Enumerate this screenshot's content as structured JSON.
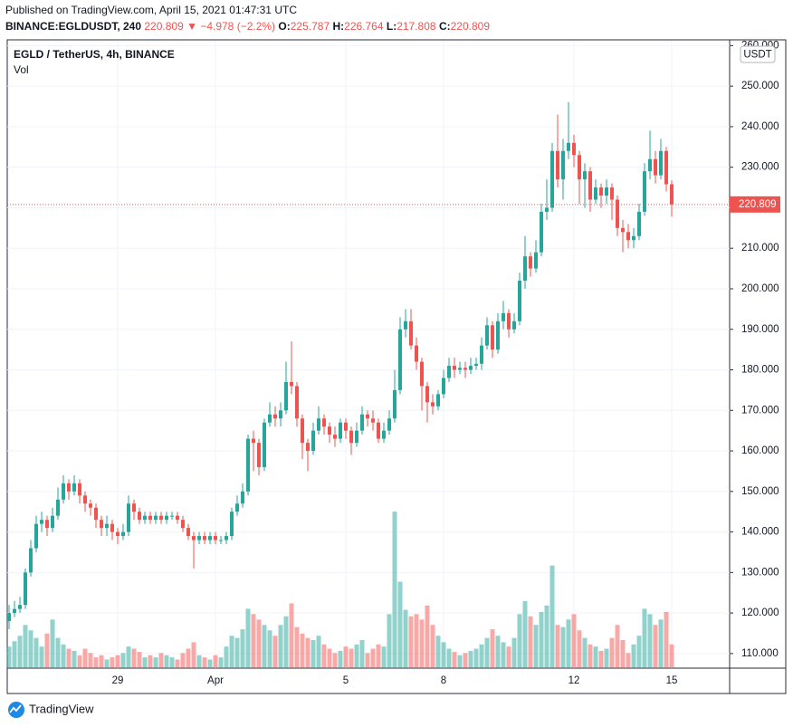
{
  "header": {
    "published": "Published on TradingView.com, April 15, 2021 01:47:31 UTC",
    "symbol": "BINANCE:EGLDUSDT, 240",
    "change": "▼ −4.978 (−2.2%)",
    "o_label": "O:",
    "h_label": "H:",
    "l_label": "L:",
    "c_label": "C:"
  },
  "legend": {
    "title": "EGLD / TetherUS, 4h, BINANCE",
    "vol": "Vol"
  },
  "currency": "USDT",
  "footer": "TradingView",
  "chart_data": {
    "type": "candlestick",
    "color_up": "#26a69a",
    "color_down": "#ef5350",
    "ylim": [
      106.4,
      261.2
    ],
    "yticks": [
      {
        "value": 110,
        "label": "110.000"
      },
      {
        "value": 120,
        "label": "120.000"
      },
      {
        "value": 130,
        "label": "130.000"
      },
      {
        "value": 140,
        "label": "140.000"
      },
      {
        "value": 150,
        "label": "150.000"
      },
      {
        "value": 160,
        "label": "160.000"
      },
      {
        "value": 170,
        "label": "170.000"
      },
      {
        "value": 180,
        "label": "180.000"
      },
      {
        "value": 190,
        "label": "190.000"
      },
      {
        "value": 200,
        "label": "200.000"
      },
      {
        "value": 210,
        "label": "210.000"
      },
      {
        "value": 220,
        "label": "220.000"
      },
      {
        "value": 230,
        "label": "230.000"
      },
      {
        "value": 240,
        "label": "240.000"
      },
      {
        "value": 250,
        "label": "250.000"
      },
      {
        "value": 260,
        "label": "260.000"
      }
    ],
    "grid": true,
    "categories": [
      null,
      null,
      null,
      null,
      null,
      null,
      null,
      null,
      null,
      null,
      null,
      null,
      null,
      null,
      null,
      null,
      null,
      null,
      null,
      null,
      "29",
      null,
      null,
      null,
      null,
      null,
      null,
      null,
      null,
      null,
      null,
      null,
      null,
      null,
      null,
      null,
      null,
      null,
      "Apr",
      null,
      null,
      null,
      null,
      null,
      null,
      null,
      null,
      null,
      null,
      null,
      null,
      null,
      null,
      null,
      null,
      null,
      null,
      null,
      null,
      null,
      null,
      null,
      "5",
      null,
      null,
      null,
      null,
      null,
      null,
      null,
      null,
      null,
      null,
      null,
      null,
      null,
      null,
      null,
      null,
      null,
      "8",
      null,
      null,
      null,
      null,
      null,
      null,
      null,
      null,
      null,
      null,
      null,
      null,
      null,
      null,
      null,
      null,
      null,
      null,
      null,
      null,
      null,
      null,
      null,
      "12",
      null,
      null,
      null,
      null,
      null,
      null,
      null,
      null,
      null,
      null,
      null,
      null,
      null,
      null,
      null,
      null,
      null,
      "15"
    ],
    "open": [
      118,
      120,
      121,
      122,
      130,
      136,
      142,
      143,
      141,
      144,
      148,
      152,
      150,
      152,
      149,
      147,
      146,
      143,
      141,
      142,
      140,
      139,
      140,
      147,
      145,
      143,
      144,
      143,
      144,
      143,
      144,
      144,
      143,
      141,
      139,
      138,
      139,
      138,
      139,
      138,
      138,
      139,
      145,
      147,
      150,
      163,
      162,
      156,
      167,
      169,
      168,
      170,
      177,
      176,
      168,
      162,
      160,
      165,
      168,
      166,
      164,
      163,
      167,
      165,
      162,
      165,
      169,
      168,
      167,
      163,
      165,
      168,
      175,
      190,
      192,
      186,
      182,
      176,
      172,
      171,
      174,
      178,
      181,
      180,
      180.5,
      180,
      181,
      181.5,
      186,
      191,
      185,
      192,
      194,
      190,
      192,
      202,
      208,
      205,
      209,
      219,
      220,
      234,
      227,
      234,
      236,
      233,
      227,
      229,
      222,
      225,
      223,
      225,
      222,
      215,
      214,
      212,
      213,
      219,
      229,
      232,
      228,
      234,
      225.787
    ],
    "high": [
      122,
      123,
      124,
      131,
      138,
      144,
      145,
      144,
      146,
      151,
      154,
      153,
      154,
      153,
      150,
      148,
      147,
      144,
      144,
      143,
      141,
      142,
      149,
      148,
      146,
      145,
      145,
      145,
      145,
      145,
      145,
      145,
      144,
      142,
      140,
      140,
      140,
      140,
      140,
      139,
      140,
      146,
      149,
      152,
      164,
      165,
      163,
      168,
      172,
      171,
      172,
      182,
      187,
      177,
      169,
      163,
      167,
      171,
      169,
      167,
      166,
      168,
      168,
      166,
      167,
      171,
      170,
      170,
      168,
      167,
      170,
      180,
      193,
      195,
      195,
      188,
      183,
      177,
      174,
      175,
      180,
      183,
      183,
      182,
      182,
      183,
      183,
      188,
      193,
      192,
      194,
      197,
      195,
      194,
      204,
      213,
      209,
      212,
      221,
      227,
      236,
      243,
      237,
      246,
      238,
      234,
      231,
      230,
      227,
      226,
      227,
      226,
      223,
      217,
      216,
      215,
      221,
      231,
      239,
      234,
      237,
      235,
      226.764
    ],
    "low": [
      116,
      119,
      120,
      121,
      129,
      135,
      140,
      139,
      140,
      143,
      147,
      148,
      149,
      147,
      145,
      144,
      141,
      139,
      139,
      138,
      137,
      138,
      139,
      143,
      142,
      142,
      142,
      142,
      142,
      142,
      143,
      142,
      140,
      138,
      131,
      137,
      137,
      137,
      137,
      137,
      137,
      138,
      144,
      146,
      149,
      155,
      154,
      155,
      166,
      166,
      166,
      169,
      174,
      166,
      158,
      155,
      159,
      164,
      164,
      162,
      161,
      162,
      163,
      159,
      161,
      164,
      166,
      165,
      162,
      162,
      164,
      167,
      174,
      188,
      185,
      180,
      170,
      167,
      169,
      170,
      173,
      177,
      178,
      179,
      178,
      179,
      180,
      180,
      185,
      183,
      184,
      190,
      188,
      189,
      191,
      200,
      203,
      204,
      208,
      217,
      219,
      225,
      222,
      232,
      230,
      221,
      220,
      219,
      221,
      220,
      221,
      217,
      213,
      209,
      210,
      210,
      212,
      218,
      227,
      226,
      227,
      224,
      217.808
    ],
    "close": [
      120,
      121,
      122,
      130,
      136,
      142,
      143,
      141,
      144,
      148,
      152,
      150,
      152,
      149,
      147,
      146,
      143,
      141,
      142,
      140,
      139,
      140,
      147,
      145,
      143,
      144,
      143,
      144,
      143,
      144,
      144,
      143,
      141,
      139,
      138,
      139,
      138,
      139,
      138,
      138,
      139,
      145,
      147,
      150,
      163,
      162,
      156,
      167,
      169,
      168,
      170,
      177,
      176,
      168,
      162,
      160,
      165,
      168,
      166,
      164,
      163,
      167,
      165,
      162,
      165,
      169,
      168,
      167,
      163,
      165,
      168,
      175,
      190,
      192,
      186,
      182,
      176,
      172,
      171,
      174,
      178,
      181,
      180,
      180.5,
      180,
      181,
      181.5,
      186,
      191,
      185,
      192,
      194,
      190,
      192,
      202,
      208,
      205,
      209,
      219,
      220,
      234,
      227,
      234,
      236,
      233,
      227,
      229,
      222,
      225,
      223,
      225,
      222,
      215,
      214,
      212,
      213,
      219,
      229,
      232,
      228,
      234,
      225.787,
      220.809
    ],
    "volume": [
      20,
      25,
      30,
      40,
      35,
      28,
      20,
      32,
      45,
      28,
      22,
      18,
      16,
      12,
      18,
      14,
      10,
      12,
      8,
      10,
      12,
      14,
      20,
      18,
      15,
      10,
      12,
      10,
      14,
      12,
      10,
      8,
      14,
      18,
      24,
      12,
      10,
      8,
      12,
      10,
      20,
      30,
      28,
      36,
      55,
      50,
      45,
      40,
      35,
      30,
      40,
      48,
      60,
      38,
      32,
      28,
      26,
      30,
      22,
      18,
      14,
      16,
      20,
      18,
      22,
      26,
      14,
      18,
      22,
      20,
      50,
      145,
      80,
      54,
      48,
      50,
      45,
      58,
      40,
      30,
      24,
      18,
      15,
      12,
      14,
      16,
      18,
      22,
      28,
      36,
      30,
      24,
      20,
      28,
      50,
      62,
      48,
      40,
      52,
      58,
      95,
      40,
      38,
      45,
      50,
      35,
      28,
      22,
      20,
      16,
      18,
      28,
      40,
      26,
      14,
      22,
      30,
      55,
      50,
      40,
      45,
      52,
      22
    ]
  }
}
